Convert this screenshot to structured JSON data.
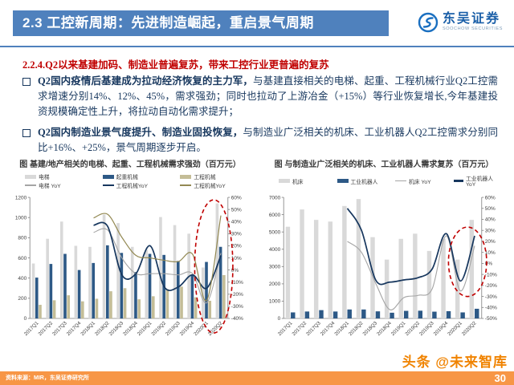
{
  "header": {
    "title": "2.3 工控新周期：先进制造崛起，重启景气周期",
    "logo_name": "东吴证券",
    "logo_sub": "SOOCHOW SECURITIES"
  },
  "subtitle": "2.2.4.Q2以来基建加码、制造业普遍复苏，带来工控行业更普遍的复苏",
  "bullets": [
    {
      "lead": "Q2国内疫情后基建成为拉动经济恢复的主力军，",
      "body": "与基建直接相关的电梯、起重、工程机械行业Q2工控需求增速分别14%、12%、45%，需求强劲；同时也拉动了上游冶金（+15%）等行业恢复增长,今年基建投资规模确定性上升，将拉动自动化需求提升；"
    },
    {
      "lead": "Q2国内制造业景气度提升、制造业固投恢复，",
      "body": "与制造业广泛相关的机床、工业机器人Q2工控需求分别同比+16%、+25%，景气周期逐步开启。"
    }
  ],
  "chart_data": [
    {
      "type": "bar+line",
      "title": "图 基建/地产相关的电梯、起重、工程机械需求强劲（百万元）",
      "categories": [
        "2017Q1",
        "2017Q2",
        "2017Q3",
        "2017Q4",
        "2018Q1",
        "2018Q2",
        "2018Q3",
        "2018Q4",
        "2019Q1",
        "2019Q2",
        "2019Q3",
        "2019Q4",
        "2020Q1",
        "2020Q2"
      ],
      "left_axis": {
        "min": 0,
        "max": 1200,
        "step": 200
      },
      "right_axis": {
        "min": -40,
        "max": 60,
        "step": 10,
        "suffix": "%"
      },
      "legend_columns": 3,
      "bar_series": [
        {
          "name": "电梯",
          "color": "#d9d9d9",
          "values": [
            545,
            790,
            960,
            720,
            710,
            1030,
            945,
            710,
            680,
            1005,
            925,
            840,
            505,
            1140
          ]
        },
        {
          "name": "起重机械",
          "color": "#2d5986",
          "values": [
            405,
            540,
            640,
            480,
            550,
            725,
            650,
            460,
            640,
            630,
            570,
            430,
            560,
            710
          ]
        },
        {
          "name": "工程机械",
          "color": "#c4bd97",
          "values": [
            135,
            180,
            230,
            170,
            195,
            270,
            300,
            190,
            220,
            290,
            315,
            210,
            175,
            430
          ]
        }
      ],
      "line_series": [
        {
          "name": "电梯 YoY",
          "color": "#a5a5a5",
          "width": 1.1,
          "values": [
            null,
            null,
            null,
            null,
            31,
            33,
            10,
            -3,
            -3,
            -3,
            -4,
            -3,
            -27,
            14
          ]
        },
        {
          "name": "工程机械YoY",
          "color": "#17375e",
          "width": 1.7,
          "values": [
            null,
            null,
            null,
            null,
            37,
            36,
            -4,
            -3,
            20,
            -14,
            -14,
            -4,
            -15,
            12
          ]
        },
        {
          "name": "工程机械YoY",
          "color": "#938953",
          "width": 1.2,
          "values": [
            null,
            null,
            null,
            null,
            43,
            46,
            27,
            12,
            10,
            8,
            7,
            13,
            -25,
            45
          ]
        }
      ],
      "highlight": {
        "categories": [
          "2020Q1",
          "2020Q2"
        ],
        "y_range": [
          -52,
          58
        ],
        "color": "#c00000"
      }
    },
    {
      "type": "bar+line",
      "title": "图 与制造业广泛相关的机床、工业机器人需求复苏（百万元）",
      "categories": [
        "2017Q1",
        "2017Q2",
        "2017Q3",
        "2017Q4",
        "2018Q1",
        "2018Q2",
        "2018Q3",
        "2018Q4",
        "2019Q1",
        "2019Q2",
        "2019Q3",
        "2019Q4",
        "2020Q1",
        "2020Q2"
      ],
      "left_axis": {
        "min": 0,
        "max": 7000,
        "step": 1000
      },
      "right_axis": {
        "min": -50,
        "max": 60,
        "step": 10,
        "suffix": "%"
      },
      "legend_columns": 4,
      "bar_series": [
        {
          "name": "机床",
          "color": "#d9d9d9",
          "values": [
            5300,
            6300,
            5700,
            5600,
            6500,
            6900,
            4700,
            3400,
            4600,
            4900,
            3900,
            4600,
            3400,
            5700
          ]
        },
        {
          "name": "工业机器人",
          "color": "#2d5986",
          "values": [
            350,
            400,
            480,
            400,
            520,
            520,
            410,
            330,
            440,
            450,
            390,
            420,
            350,
            560
          ]
        }
      ],
      "line_series": [
        {
          "name": "机床 YoY",
          "color": "#a5a5a5",
          "width": 1.1,
          "values": [
            null,
            null,
            null,
            null,
            20,
            10,
            -18,
            -42,
            -31,
            -29,
            -23,
            25,
            -25,
            16
          ]
        },
        {
          "name": "工业机器人 YoY",
          "color": "#17375e",
          "width": 1.7,
          "values": [
            null,
            null,
            null,
            null,
            50,
            30,
            -15,
            -17,
            -15,
            -13,
            -5,
            27,
            -16,
            25
          ]
        }
      ],
      "highlight": {
        "categories": [
          "2020Q1",
          "2020Q2"
        ],
        "y_range": [
          -30,
          33
        ],
        "color": "#c00000"
      }
    }
  ],
  "footer": {
    "source": "资料来源：MIR，东吴证券研究所",
    "watermark": "头条 @未来智库",
    "page": "30"
  },
  "colors": {
    "header_blue": "#4f81bd",
    "subtitle_red": "#c00000",
    "body_navy": "#17375e",
    "footer_orange": "#f79646",
    "watermark_orange": "#f08300",
    "highlight_red": "#c00000"
  }
}
